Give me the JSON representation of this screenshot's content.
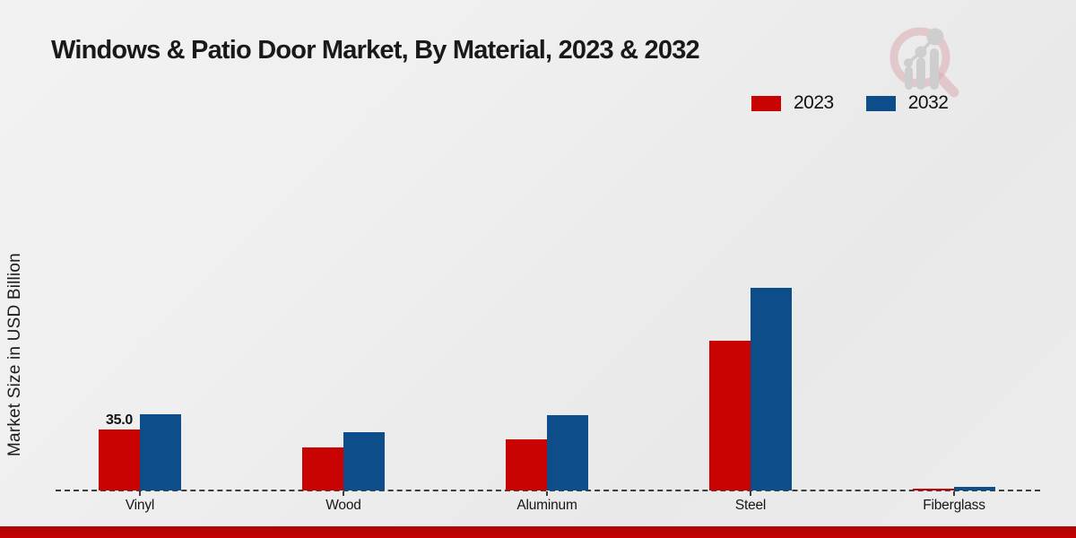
{
  "title": "Windows & Patio Door Market, By Material, 2023 & 2032",
  "ylabel": "Market Size in USD Billion",
  "legend": {
    "items": [
      {
        "label": "2023",
        "color": "#c90202"
      },
      {
        "label": "2032",
        "color": "#0c4d8a"
      }
    ]
  },
  "watermark": {
    "icon": "magnifier-bar-chart-logo"
  },
  "accent_bar_color": "#c40202",
  "chart_data": {
    "type": "bar",
    "categories": [
      "Vinyl",
      "Wood",
      "Aluminum",
      "Steel",
      "Fiberglass"
    ],
    "series": [
      {
        "name": "2023",
        "color": "#c90202",
        "values": [
          35.0,
          24.6,
          29.4,
          85.9,
          1.0
        ]
      },
      {
        "name": "2032",
        "color": "#0c4d8a",
        "values": [
          43.5,
          33.5,
          43.4,
          116.4,
          2.3
        ]
      }
    ],
    "bar_labels": [
      {
        "category": "Vinyl",
        "series": "2023",
        "text": "35.0"
      }
    ],
    "title": "Windows & Patio Door Market, By Material, 2023 & 2032",
    "xlabel": "",
    "ylabel": "Market Size in USD Billion",
    "ylim": [
      0,
      135
    ],
    "grid": false,
    "legend_position": "top-right",
    "baseline_style": "dashed",
    "y_axis_ticks_visible": false
  }
}
